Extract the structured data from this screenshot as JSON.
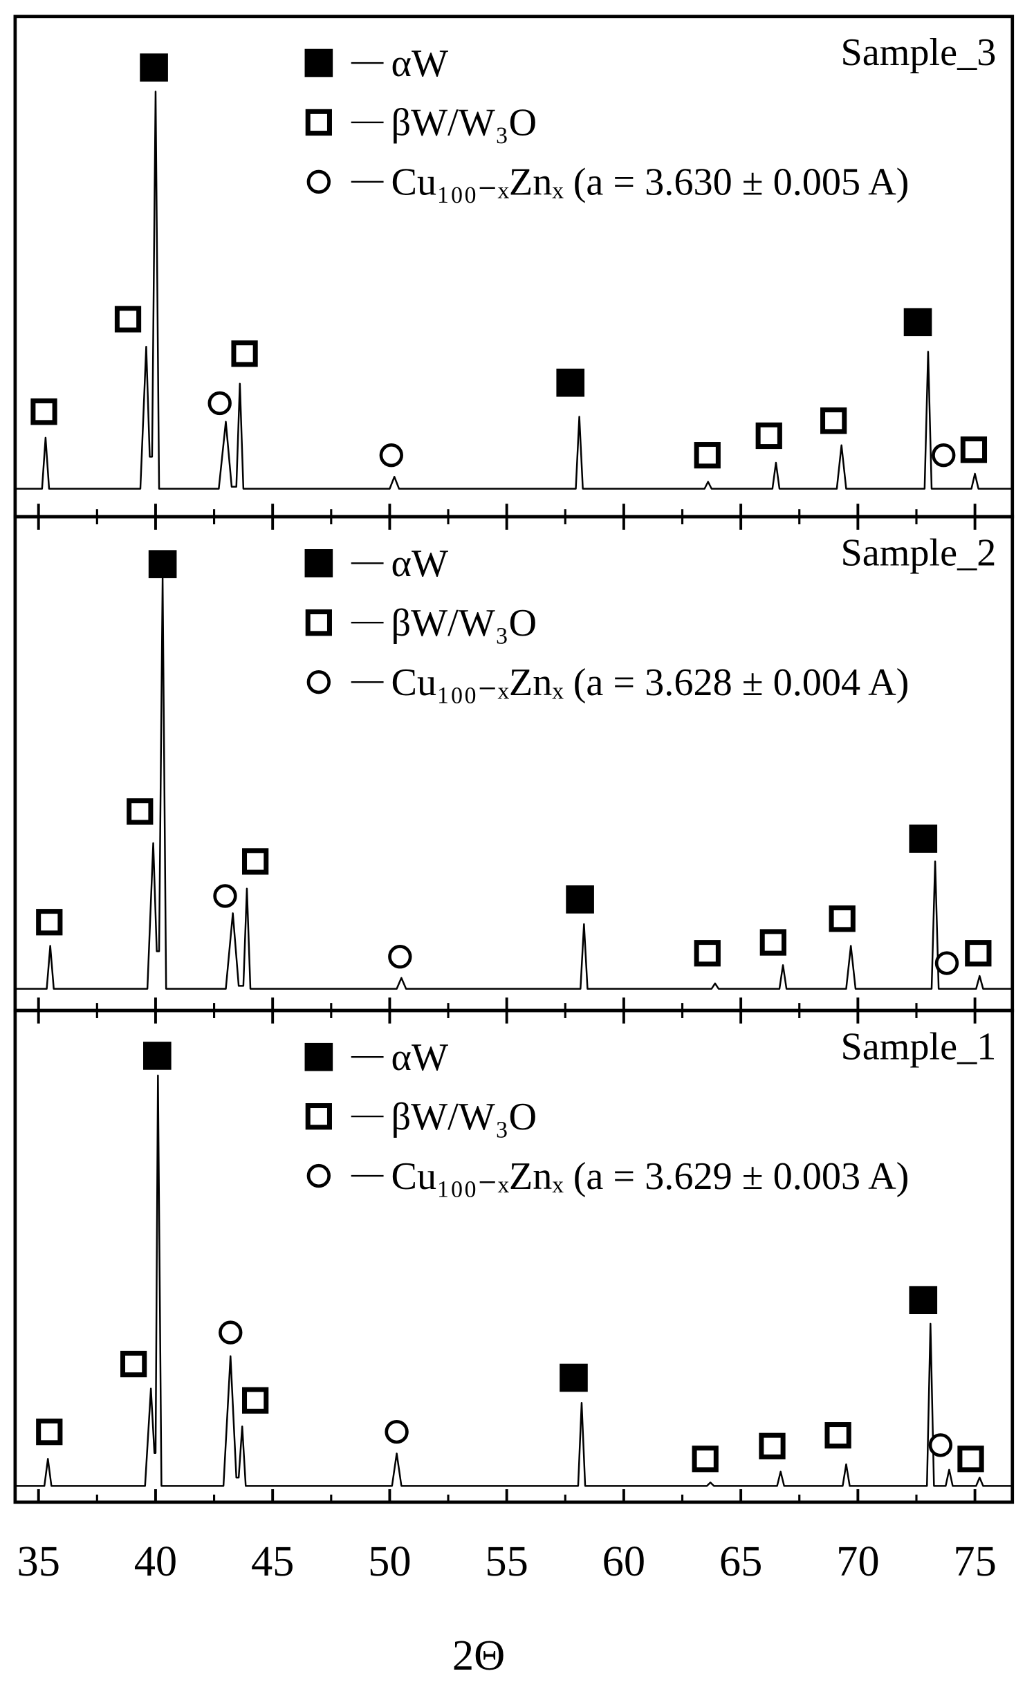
{
  "chart_data": [
    {
      "type": "line",
      "xlim": [
        34,
        76.6
      ],
      "ylim": [
        0,
        100
      ],
      "series": [
        {
          "name": "Sample_3",
          "color": "#000000",
          "x": [
            34.0,
            35.15,
            35.3,
            35.45,
            39.35,
            39.6,
            39.75,
            39.85,
            40.0,
            40.15,
            42.7,
            43.0,
            43.25,
            43.45,
            43.6,
            43.75,
            50.0,
            50.2,
            50.4,
            57.95,
            58.1,
            58.25,
            63.45,
            63.6,
            63.75,
            66.35,
            66.5,
            66.65,
            69.1,
            69.3,
            69.5,
            72.85,
            73.0,
            73.15,
            74.85,
            75.0,
            75.15,
            76.6
          ],
          "values": [
            5.6,
            5.6,
            15.8,
            5.6,
            5.6,
            34,
            12,
            12,
            85,
            5.6,
            5.6,
            19,
            6,
            6,
            26.6,
            5.6,
            5.6,
            8,
            5.6,
            5.6,
            20,
            5.6,
            5.6,
            7,
            5.6,
            5.6,
            10.8,
            5.6,
            5.6,
            14.3,
            5.6,
            5.6,
            33,
            5.6,
            5.6,
            8.6,
            5.6,
            5.6
          ]
        }
      ],
      "markers": [
        {
          "name": "αW",
          "symbol": "filled-square",
          "x": [
            39.93,
            57.72,
            72.56
          ],
          "values": [
            89.8,
            26.8,
            38.9
          ]
        },
        {
          "name": "βW/W₃O",
          "symbol": "open-square",
          "x": [
            35.23,
            38.82,
            43.8,
            63.57,
            66.2,
            68.96,
            74.95
          ],
          "values": [
            21.0,
            39.5,
            32.6,
            12.3,
            16.2,
            19.2,
            13.4
          ]
        },
        {
          "name": "Cu₁₀₀₋ₓZnₓ (a = 3.630 ± 0.005 A)",
          "symbol": "open-circle",
          "x": [
            42.74,
            50.07,
            73.66
          ],
          "values": [
            22.7,
            12.3,
            12.3
          ]
        }
      ]
    },
    {
      "type": "line",
      "xlim": [
        34,
        76.6
      ],
      "ylim": [
        0,
        100
      ],
      "series": [
        {
          "name": "Sample_2",
          "color": "#000000",
          "x": [
            34.0,
            35.35,
            35.5,
            35.65,
            39.65,
            39.9,
            40.05,
            40.15,
            40.3,
            40.45,
            43.0,
            43.3,
            43.55,
            43.75,
            43.9,
            44.05,
            50.3,
            50.5,
            50.7,
            58.15,
            58.3,
            58.45,
            63.75,
            63.9,
            64.05,
            66.65,
            66.8,
            66.95,
            69.5,
            69.7,
            69.9,
            73.15,
            73.3,
            73.45,
            75.05,
            75.2,
            75.35,
            76.6
          ],
          "values": [
            4.4,
            4.4,
            13.1,
            4.4,
            4.4,
            33.9,
            12,
            12,
            87.5,
            4.4,
            4.4,
            19.7,
            5,
            5,
            24.7,
            4.4,
            4.4,
            6.6,
            4.4,
            4.4,
            17.5,
            4.4,
            4.4,
            5.5,
            4.4,
            4.4,
            9.2,
            4.4,
            4.4,
            13.1,
            4.4,
            4.4,
            30.2,
            4.4,
            4.4,
            7,
            4.4,
            4.4
          ]
        }
      ],
      "markers": [
        {
          "name": "αW",
          "symbol": "filled-square",
          "x": [
            40.3,
            58.13,
            72.79
          ],
          "values": [
            90.4,
            22.5,
            34.8
          ]
        },
        {
          "name": "βW/W₃O",
          "symbol": "open-square",
          "x": [
            35.46,
            39.33,
            44.26,
            63.57,
            66.38,
            69.33,
            75.14
          ],
          "values": [
            17.9,
            40.3,
            30.2,
            11.6,
            13.8,
            18.6,
            11.6
          ]
        },
        {
          "name": "Cu₁₀₀₋ₓZnₓ (a = 3.628 ± 0.004 A)",
          "symbol": "open-circle",
          "x": [
            42.97,
            50.44,
            73.8
          ],
          "values": [
            23.2,
            10.9,
            9.6
          ]
        }
      ]
    },
    {
      "type": "line",
      "xlim": [
        34,
        76.6
      ],
      "ylim": [
        0,
        100
      ],
      "xticks": [
        35,
        40,
        45,
        50,
        55,
        60,
        65,
        70,
        75
      ],
      "xminorticks": [
        37.5,
        42.5,
        47.5,
        52.5,
        57.5,
        62.5,
        67.5,
        72.5
      ],
      "xlabel": "2Θ",
      "series": [
        {
          "name": "Sample_1",
          "color": "#000000",
          "x": [
            34.0,
            35.25,
            35.4,
            35.55,
            39.55,
            39.8,
            39.95,
            40.0,
            40.1,
            40.25,
            42.9,
            43.2,
            43.45,
            43.55,
            43.7,
            43.85,
            50.1,
            50.3,
            50.5,
            58.05,
            58.2,
            58.35,
            63.55,
            63.7,
            63.85,
            66.55,
            66.7,
            66.85,
            69.35,
            69.5,
            69.65,
            72.95,
            73.1,
            73.25,
            73.75,
            73.9,
            74.05,
            75.05,
            75.2,
            75.35,
            76.6
          ],
          "values": [
            3.3,
            3.3,
            8.8,
            3.3,
            3.3,
            23.1,
            10,
            10,
            86.8,
            3.3,
            3.3,
            29.7,
            5,
            5,
            15.4,
            3.3,
            3.3,
            9.9,
            3.3,
            3.3,
            20.2,
            3.3,
            3.3,
            4,
            3.3,
            3.3,
            6.2,
            3.3,
            3.3,
            7.7,
            3.3,
            3.3,
            36.3,
            3.3,
            3.3,
            6.6,
            3.3,
            3.3,
            5,
            3.3,
            3.3
          ]
        }
      ],
      "markers": [
        {
          "name": "αW",
          "symbol": "filled-square",
          "x": [
            40.07,
            57.86,
            72.79
          ],
          "values": [
            90.8,
            25.3,
            41.1
          ]
        },
        {
          "name": "βW/W₃O",
          "symbol": "open-square",
          "x": [
            35.46,
            39.06,
            44.26,
            63.48,
            66.34,
            69.15,
            74.82
          ],
          "values": [
            14.3,
            28.1,
            20.7,
            8.8,
            11.4,
            13.6,
            8.8
          ]
        },
        {
          "name": "Cu₁₀₀₋ₓZnₓ (a = 3.629 ± 0.003 A)",
          "symbol": "open-circle",
          "x": [
            43.2,
            50.3,
            73.53
          ],
          "values": [
            34.5,
            14.3,
            11.6
          ]
        }
      ]
    }
  ]
}
